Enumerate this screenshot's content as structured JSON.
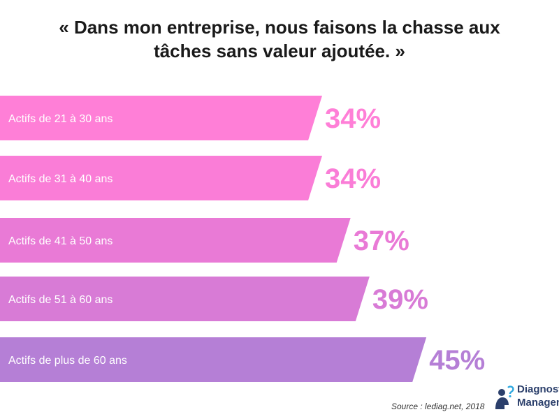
{
  "title": {
    "line1": "« Dans mon entreprise, nous faisons la chasse aux",
    "line2": "tâches sans valeur ajoutée. »"
  },
  "chart_data": {
    "type": "bar",
    "orientation": "horizontal",
    "categories": [
      "Actifs de 21 à 30 ans",
      "Actifs de 31 à 40 ans",
      "Actifs de 41 à 50 ans",
      "Actifs de 51 à 60 ans",
      "Actifs de plus de 60 ans"
    ],
    "values": [
      34,
      34,
      37,
      39,
      45
    ],
    "value_labels": [
      "34%",
      "34%",
      "37%",
      "39%",
      "45%"
    ],
    "colors": [
      "#ff7fd7",
      "#fa7dd7",
      "#e97ad6",
      "#d87bd6",
      "#b57fd6"
    ],
    "xlim": [
      0,
      100
    ],
    "grid": false,
    "legend": "none"
  },
  "source": "Source : lediag.net, 2018",
  "logo": {
    "line1": "Diagnostic",
    "line2": "Management",
    "icon": "person-question-icon"
  }
}
